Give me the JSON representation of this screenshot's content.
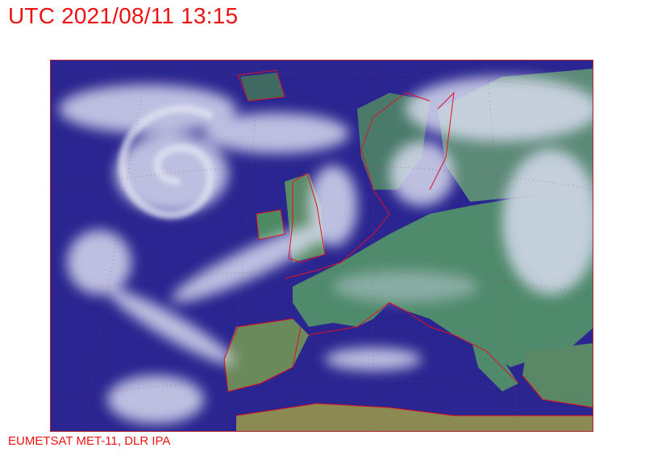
{
  "header": {
    "title": "UTC 2021/08/11 13:15"
  },
  "footer": {
    "credit": "EUMETSAT MET-11, DLR IPA"
  },
  "map": {
    "type": "satellite-image",
    "region": "Europe and North Atlantic",
    "colors": {
      "ocean": "#2a2590",
      "land": "#4a8a6a",
      "cloud": "#d8dcef",
      "coastline": "#e01020",
      "frame": "#b02030"
    }
  }
}
